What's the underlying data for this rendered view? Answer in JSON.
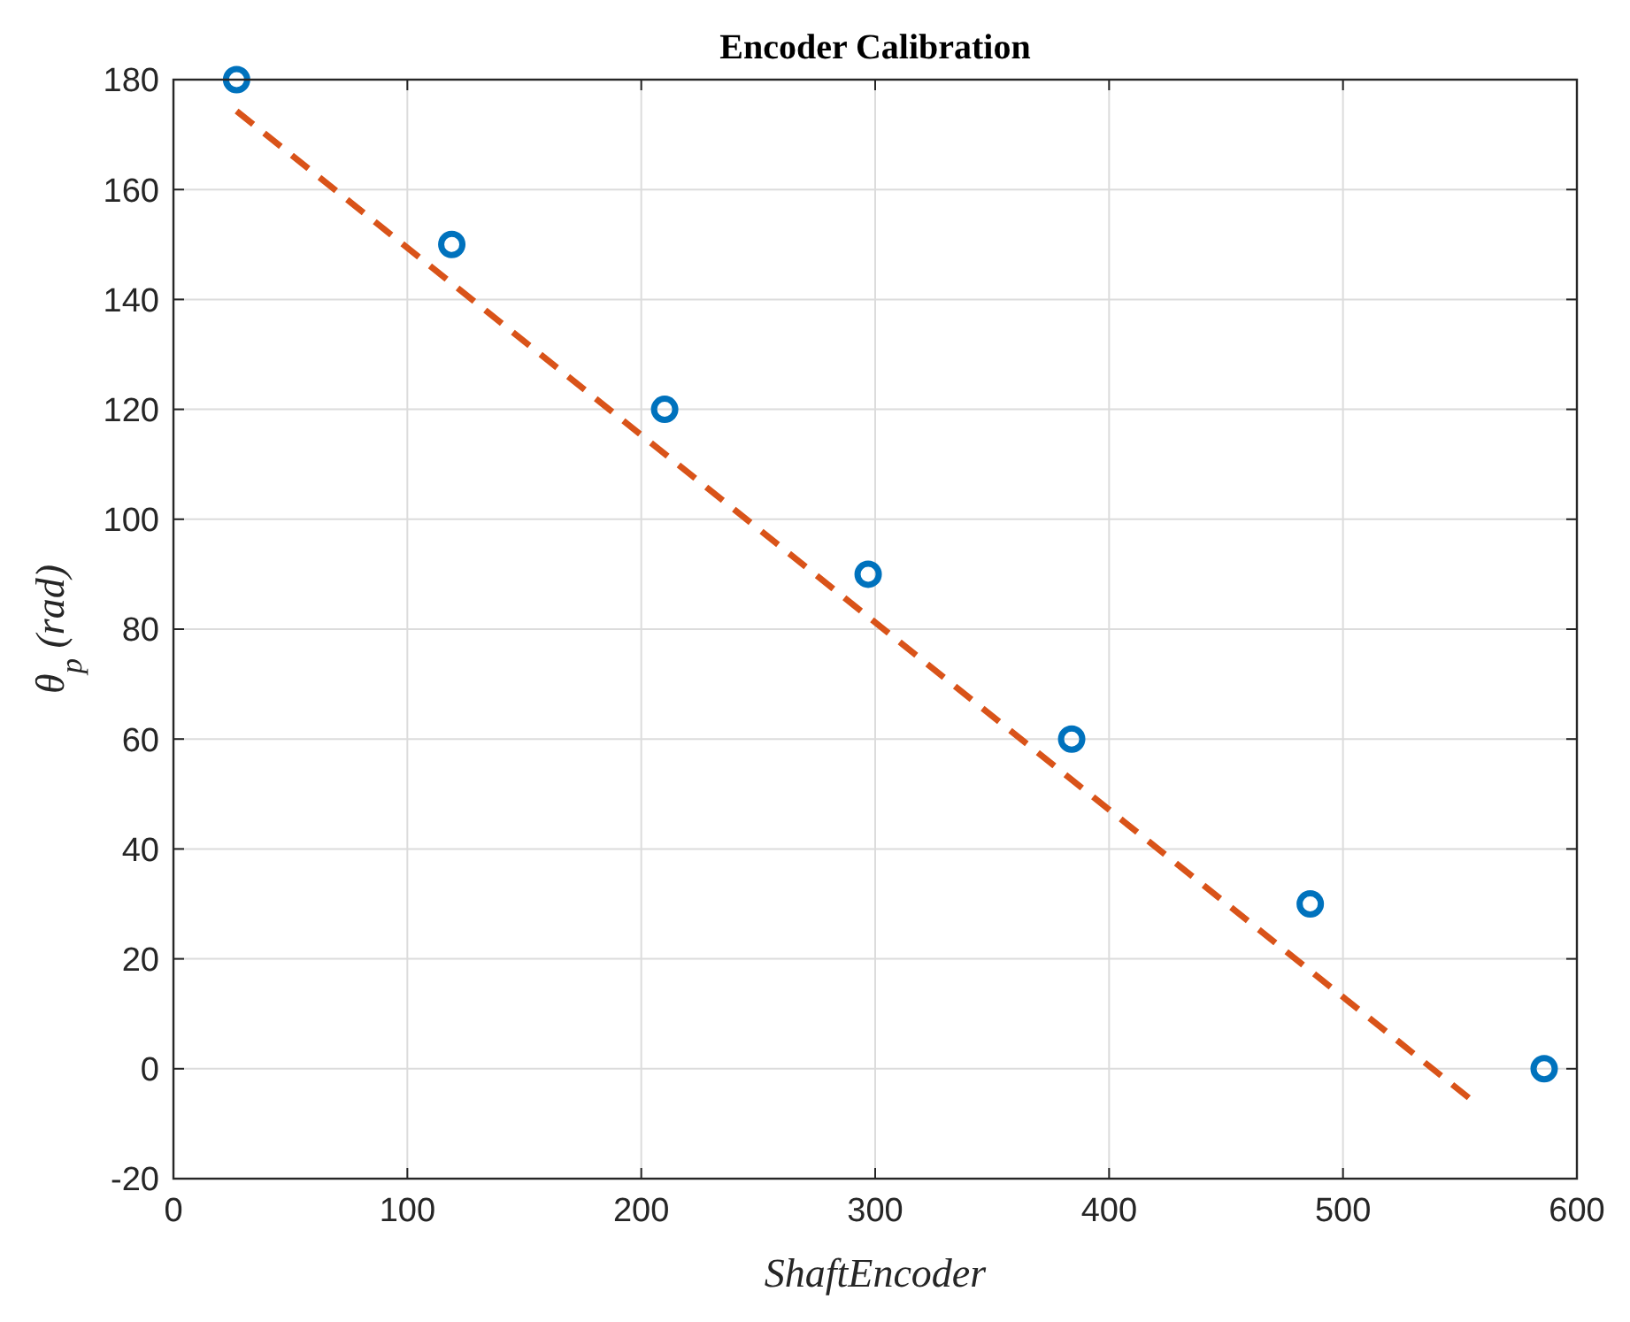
{
  "chart_data": {
    "type": "scatter",
    "title": "Encoder Calibration",
    "xlabel": "ShaftEncoder",
    "ylabel": "θ$_{p}$ (rad)",
    "xlim": [
      0,
      600
    ],
    "xticks": [
      0,
      100,
      200,
      300,
      400,
      500,
      600
    ],
    "ylim": [
      -20,
      180
    ],
    "yticks": [
      -20,
      0,
      20,
      40,
      60,
      80,
      100,
      120,
      140,
      160,
      180
    ],
    "grid": true,
    "series": [
      {
        "color": "#0072bd",
        "marker": "circle",
        "x": [
          27,
          119,
          210,
          297,
          384,
          486,
          586
        ],
        "values": [
          180,
          150,
          120,
          90,
          60,
          30,
          0
        ]
      },
      {
        "type": "line",
        "color": "#d95319",
        "line_style": "dashed",
        "x": [
          27,
          555
        ],
        "values": [
          174.3,
          -5.7
        ]
      }
    ]
  }
}
